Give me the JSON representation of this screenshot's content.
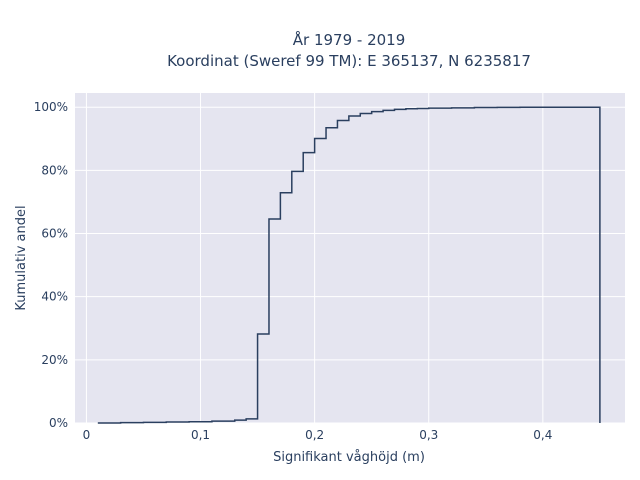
{
  "chart_data": {
    "type": "line",
    "line_shape": "step",
    "title": "År 1979 - 2019",
    "subtitle": "Koordinat (Sweref 99 TM): E 365137, N 6235817",
    "xlabel": "Signifikant våghöjd (m)",
    "ylabel": "Kumulativ andel",
    "xlim": [
      -0.01,
      0.472
    ],
    "ylim": [
      0,
      1.045
    ],
    "x_ticks": [
      {
        "value": 0,
        "label": "0"
      },
      {
        "value": 0.1,
        "label": "0,1"
      },
      {
        "value": 0.2,
        "label": "0,2"
      },
      {
        "value": 0.3,
        "label": "0,3"
      },
      {
        "value": 0.4,
        "label": "0,4"
      }
    ],
    "y_ticks": [
      {
        "value": 0,
        "label": "0%"
      },
      {
        "value": 0.2,
        "label": "20%"
      },
      {
        "value": 0.4,
        "label": "40%"
      },
      {
        "value": 0.6,
        "label": "60%"
      },
      {
        "value": 0.8,
        "label": "80%"
      },
      {
        "value": 1.0,
        "label": "100%"
      }
    ],
    "grid": true,
    "plot_background": "#e5e5f0",
    "line_color": "#2a3f5f",
    "series": [
      {
        "x": [
          0.01,
          0.03,
          0.05,
          0.07,
          0.09,
          0.11,
          0.13,
          0.14,
          0.15,
          0.16,
          0.17,
          0.18,
          0.19,
          0.2,
          0.21,
          0.22,
          0.23,
          0.24,
          0.25,
          0.26,
          0.27,
          0.28,
          0.29,
          0.3,
          0.32,
          0.34,
          0.36,
          0.38,
          0.4,
          0.45,
          0.45
        ],
        "y": [
          0.0,
          0.001,
          0.002,
          0.003,
          0.004,
          0.006,
          0.009,
          0.013,
          0.282,
          0.646,
          0.729,
          0.797,
          0.856,
          0.901,
          0.935,
          0.958,
          0.972,
          0.98,
          0.986,
          0.99,
          0.993,
          0.995,
          0.996,
          0.997,
          0.998,
          0.999,
          0.9995,
          0.9998,
          1.0,
          1.0,
          0.0
        ]
      }
    ]
  }
}
